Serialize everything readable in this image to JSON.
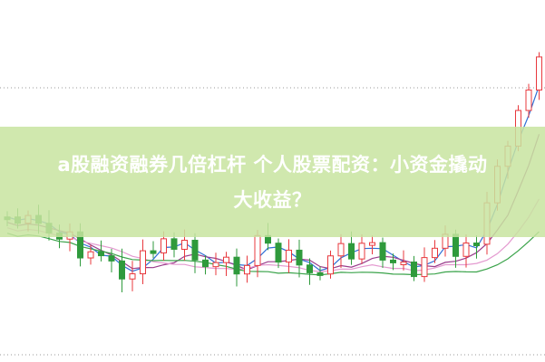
{
  "article": {
    "title_line1": "a股融资融券几倍杠杆 个人股票配资：小资金撬动",
    "title_line2": "大收益？"
  },
  "colors": {
    "up_candle": "#e8383d",
    "down_candle": "#2f9a3c",
    "banner": "#c8e4a0",
    "ma_lines": [
      "#2f6fd6",
      "#9a3d8c",
      "#e49ad0",
      "#3aa34a"
    ]
  },
  "illustration": "candlestick-stock-chart"
}
